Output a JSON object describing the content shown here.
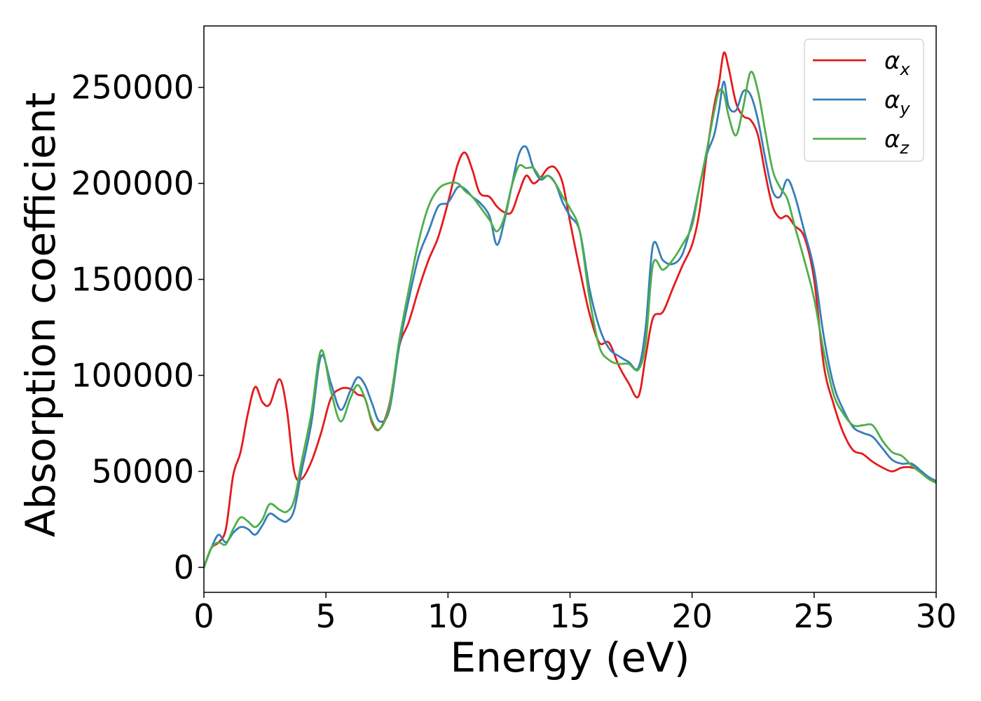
{
  "chart_data": {
    "type": "line",
    "title": "",
    "xlabel": "Energy (eV)",
    "ylabel": "Absorption coefficient",
    "xlim": [
      0,
      30
    ],
    "ylim": [
      -13000,
      282000
    ],
    "xticks": [
      0,
      5,
      10,
      15,
      20,
      25,
      30
    ],
    "xtick_labels": [
      "0",
      "5",
      "10",
      "15",
      "20",
      "25",
      "30"
    ],
    "yticks": [
      0,
      50000,
      100000,
      150000,
      200000,
      250000
    ],
    "ytick_labels": [
      "0",
      "50000",
      "100000",
      "150000",
      "200000",
      "250000"
    ],
    "grid": false,
    "legend_position": "top-right",
    "series": [
      {
        "name": "α_x",
        "label_main": "α",
        "label_sub": "x",
        "color": "#e41a1c",
        "x": [
          0,
          0.3,
          0.6,
          0.9,
          1.2,
          1.5,
          1.8,
          2.1,
          2.4,
          2.7,
          3.1,
          3.4,
          3.7,
          4.0,
          4.4,
          4.8,
          5.2,
          5.6,
          6.0,
          6.3,
          6.6,
          6.9,
          7.2,
          7.6,
          8.0,
          8.4,
          8.8,
          9.2,
          9.6,
          10.0,
          10.4,
          10.7,
          11.0,
          11.3,
          11.7,
          12.0,
          12.3,
          12.6,
          12.9,
          13.2,
          13.5,
          13.8,
          14.1,
          14.4,
          14.7,
          15.0,
          15.4,
          15.8,
          16.2,
          16.6,
          17.0,
          17.4,
          17.8,
          18.1,
          18.4,
          18.8,
          19.2,
          19.6,
          20.0,
          20.3,
          20.6,
          20.9,
          21.1,
          21.3,
          21.5,
          21.8,
          22.1,
          22.4,
          22.7,
          23.0,
          23.3,
          23.6,
          23.9,
          24.2,
          24.6,
          25.0,
          25.4,
          25.8,
          26.2,
          26.6,
          27.0,
          27.4,
          27.8,
          28.2,
          28.6,
          29.0,
          29.4,
          29.7,
          30.0
        ],
        "y": [
          0,
          10000,
          13000,
          20000,
          48000,
          60000,
          80000,
          94000,
          86000,
          85000,
          98000,
          82000,
          50000,
          46000,
          55000,
          70000,
          88000,
          93000,
          93000,
          90000,
          88000,
          75000,
          72000,
          85000,
          115000,
          128000,
          145000,
          160000,
          172000,
          190000,
          210000,
          216000,
          207000,
          195000,
          193000,
          188000,
          185000,
          185000,
          195000,
          204000,
          200000,
          203000,
          208000,
          208000,
          200000,
          180000,
          155000,
          132000,
          117000,
          117000,
          105000,
          96000,
          89000,
          110000,
          130000,
          133000,
          145000,
          157000,
          168000,
          185000,
          215000,
          240000,
          252000,
          268000,
          260000,
          242000,
          235000,
          233000,
          225000,
          205000,
          188000,
          182000,
          183000,
          178000,
          172000,
          150000,
          105000,
          85000,
          70000,
          61000,
          59000,
          55000,
          52000,
          50000,
          52000,
          52000,
          50000,
          46000,
          45000
        ]
      },
      {
        "name": "α_y",
        "label_main": "α",
        "label_sub": "y",
        "color": "#377eb8",
        "x": [
          0,
          0.3,
          0.6,
          0.9,
          1.2,
          1.5,
          1.8,
          2.1,
          2.4,
          2.7,
          3.1,
          3.4,
          3.7,
          4.0,
          4.4,
          4.8,
          5.2,
          5.6,
          6.0,
          6.3,
          6.6,
          6.9,
          7.2,
          7.6,
          8.0,
          8.4,
          8.8,
          9.2,
          9.6,
          10.0,
          10.4,
          10.7,
          11.0,
          11.3,
          11.7,
          12.0,
          12.3,
          12.6,
          12.9,
          13.2,
          13.5,
          13.8,
          14.1,
          14.4,
          14.7,
          15.0,
          15.4,
          15.8,
          16.2,
          16.6,
          17.0,
          17.4,
          17.8,
          18.1,
          18.4,
          18.8,
          19.2,
          19.6,
          20.0,
          20.3,
          20.6,
          20.9,
          21.1,
          21.3,
          21.5,
          21.8,
          22.1,
          22.4,
          22.7,
          23.0,
          23.3,
          23.6,
          23.9,
          24.2,
          24.6,
          25.0,
          25.4,
          25.8,
          26.2,
          26.6,
          27.0,
          27.4,
          27.8,
          28.2,
          28.6,
          29.0,
          29.4,
          29.7,
          30.0
        ],
        "y": [
          0,
          10000,
          17000,
          13000,
          18000,
          21000,
          20000,
          17000,
          22000,
          28000,
          25000,
          24000,
          30000,
          50000,
          75000,
          110000,
          96000,
          82000,
          92000,
          99000,
          95000,
          85000,
          76000,
          82000,
          115000,
          140000,
          162000,
          175000,
          188000,
          190000,
          198000,
          197000,
          193000,
          190000,
          183000,
          168000,
          180000,
          198000,
          215000,
          219000,
          208000,
          202000,
          204000,
          200000,
          190000,
          183000,
          175000,
          145000,
          125000,
          114000,
          110000,
          107000,
          104000,
          125000,
          168000,
          160000,
          158000,
          163000,
          180000,
          198000,
          215000,
          225000,
          238000,
          253000,
          240000,
          238000,
          248000,
          246000,
          233000,
          213000,
          196000,
          193000,
          202000,
          194000,
          175000,
          155000,
          120000,
          95000,
          82000,
          73000,
          70000,
          68000,
          62000,
          56000,
          54000,
          54000,
          50000,
          47000,
          45000
        ]
      },
      {
        "name": "α_z",
        "label_main": "α",
        "label_sub": "z",
        "color": "#4daf4a",
        "x": [
          0,
          0.3,
          0.6,
          0.9,
          1.2,
          1.5,
          1.8,
          2.1,
          2.4,
          2.7,
          3.1,
          3.4,
          3.7,
          4.0,
          4.4,
          4.8,
          5.2,
          5.6,
          6.0,
          6.3,
          6.6,
          6.9,
          7.2,
          7.6,
          8.0,
          8.4,
          8.8,
          9.2,
          9.6,
          10.0,
          10.4,
          10.7,
          11.0,
          11.3,
          11.7,
          12.0,
          12.3,
          12.6,
          12.9,
          13.2,
          13.5,
          13.8,
          14.1,
          14.4,
          14.7,
          15.0,
          15.4,
          15.8,
          16.2,
          16.6,
          17.0,
          17.4,
          17.8,
          18.1,
          18.4,
          18.8,
          19.2,
          19.6,
          20.0,
          20.3,
          20.6,
          20.9,
          21.1,
          21.3,
          21.5,
          21.8,
          22.1,
          22.4,
          22.7,
          23.0,
          23.3,
          23.6,
          23.9,
          24.2,
          24.6,
          25.0,
          25.4,
          25.8,
          26.2,
          26.6,
          27.0,
          27.4,
          27.8,
          28.2,
          28.6,
          29.0,
          29.4,
          29.7,
          30.0
        ],
        "y": [
          0,
          10000,
          13000,
          12000,
          20000,
          26000,
          24000,
          21000,
          25000,
          33000,
          30000,
          29000,
          35000,
          55000,
          80000,
          113000,
          92000,
          76000,
          88000,
          95000,
          88000,
          76000,
          72000,
          84000,
          118000,
          145000,
          170000,
          188000,
          197000,
          200000,
          200000,
          196000,
          193000,
          188000,
          181000,
          175000,
          182000,
          198000,
          209000,
          208000,
          208000,
          203000,
          204000,
          200000,
          193000,
          187000,
          175000,
          140000,
          115000,
          108000,
          106000,
          106000,
          103000,
          117000,
          158000,
          155000,
          160000,
          168000,
          178000,
          198000,
          217000,
          237000,
          248000,
          247000,
          235000,
          225000,
          240000,
          258000,
          248000,
          227000,
          207000,
          198000,
          192000,
          178000,
          160000,
          140000,
          112000,
          90000,
          80000,
          74000,
          74000,
          74000,
          66000,
          60000,
          58000,
          53000,
          49000,
          46000,
          44000
        ]
      }
    ]
  }
}
